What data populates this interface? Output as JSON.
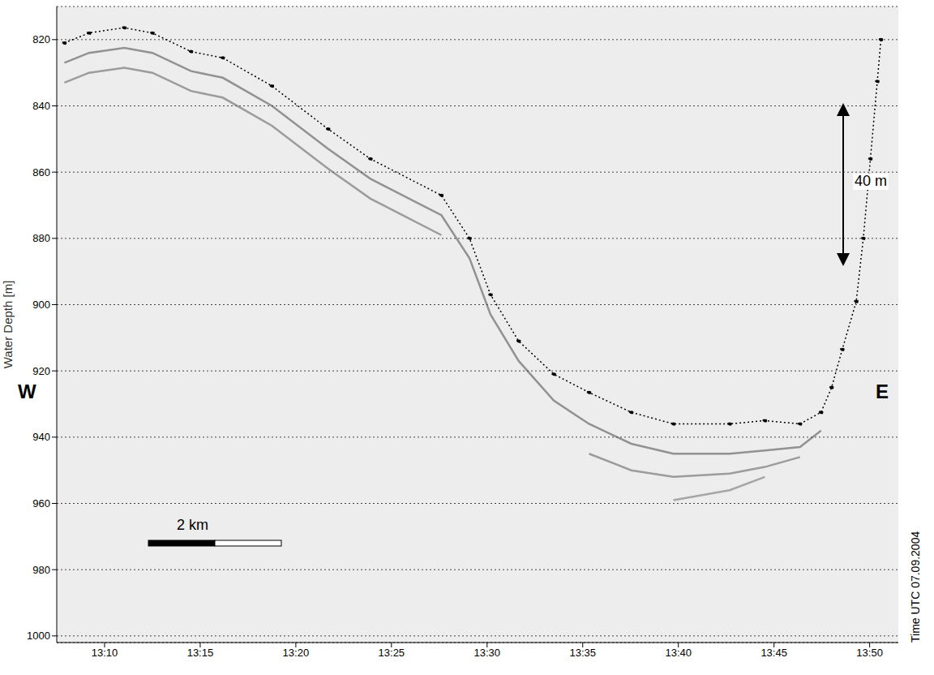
{
  "chart_data": {
    "type": "line",
    "y_label": "Water Depth [m]",
    "x": [
      787.9,
      789.19,
      791.03,
      792.5,
      794.52,
      796.18,
      798.75,
      801.69,
      803.9,
      807.61,
      809.08,
      810.18,
      811.65,
      813.49,
      815.33,
      817.54,
      819.74,
      822.68,
      824.52,
      826.36,
      827.46,
      828.01,
      828.57,
      829.3,
      829.67,
      830.04,
      830.4,
      830.59
    ],
    "series": [
      {
        "color": "#000000",
        "marker": "dot",
        "line_style": "dotted",
        "values": [
          821,
          818,
          816.4,
          818,
          823.6,
          825.5,
          834,
          847,
          856,
          867,
          880,
          897,
          911,
          921,
          926.5,
          932.5,
          936,
          936,
          935,
          936,
          932.5,
          925,
          913.5,
          899,
          880,
          856,
          832.6,
          820
        ]
      },
      {
        "color": "#555555",
        "marker": "none",
        "line_style": "solid",
        "values": [
          827,
          824,
          822.5,
          824,
          829.5,
          831.5,
          840,
          853,
          862,
          873,
          886,
          903,
          917,
          929,
          936,
          942,
          945,
          945,
          944,
          943,
          938,
          null,
          null,
          null,
          null,
          null,
          null,
          null
        ]
      },
      {
        "color": "#666666",
        "marker": "none",
        "line_style": "solid",
        "values": [
          833,
          830,
          828.5,
          830,
          835.5,
          837.5,
          846,
          859,
          868,
          879,
          null,
          null,
          null,
          null,
          945,
          950,
          952,
          951,
          949,
          946,
          null,
          null,
          null,
          null,
          null,
          null,
          null,
          null
        ]
      },
      {
        "color": "#777777",
        "marker": "none",
        "line_style": "solid",
        "values": [
          null,
          null,
          null,
          null,
          null,
          null,
          null,
          null,
          null,
          null,
          null,
          null,
          null,
          null,
          null,
          null,
          959,
          956,
          952,
          null,
          null,
          null,
          null,
          null,
          null,
          null,
          null,
          null
        ]
      }
    ],
    "xlim": [
      787.5,
      831.5
    ],
    "xticks": [
      {
        "value": 790,
        "label": "13:10"
      },
      {
        "value": 795,
        "label": "13:15"
      },
      {
        "value": 800,
        "label": "13:20"
      },
      {
        "value": 805,
        "label": "13:25"
      },
      {
        "value": 810,
        "label": "13:30"
      },
      {
        "value": 815,
        "label": "13:35"
      },
      {
        "value": 820,
        "label": "13:40"
      },
      {
        "value": 825,
        "label": "13:45"
      },
      {
        "value": 830,
        "label": "13:50"
      }
    ],
    "ylim": [
      810,
      1002
    ],
    "yticks": [
      820,
      840,
      860,
      880,
      900,
      920,
      940,
      960,
      980,
      1000
    ],
    "grid": true,
    "annotations": [
      {
        "text": "W"
      },
      {
        "text": "E"
      },
      {
        "text": "40 m"
      },
      {
        "text": "2 km"
      },
      {
        "text": "Time UTC 07.09.2004"
      }
    ]
  }
}
